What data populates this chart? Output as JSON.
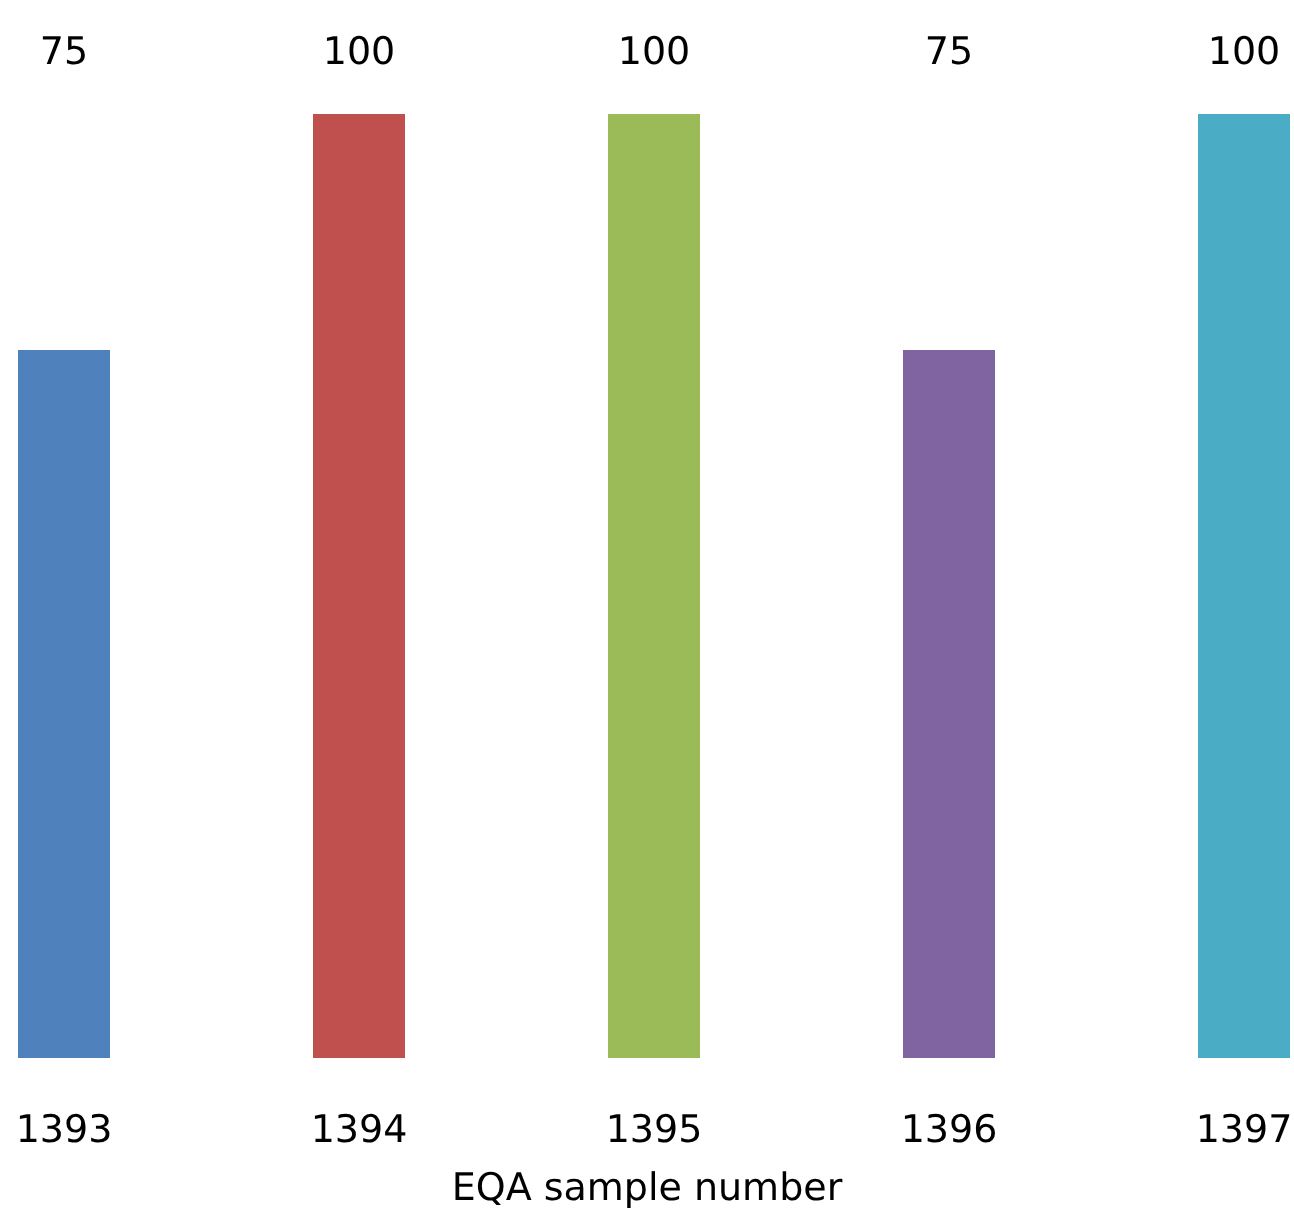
{
  "chart_data": {
    "type": "bar",
    "xlabel": "EQA sample number",
    "categories": [
      "1393",
      "1394",
      "1395",
      "1396",
      "1397"
    ],
    "values": [
      75,
      100,
      100,
      75,
      100
    ],
    "colors": [
      "#4f81bd",
      "#c0504d",
      "#9bbb59",
      "#8064a2",
      "#4bacc6"
    ],
    "data_labels": true
  }
}
